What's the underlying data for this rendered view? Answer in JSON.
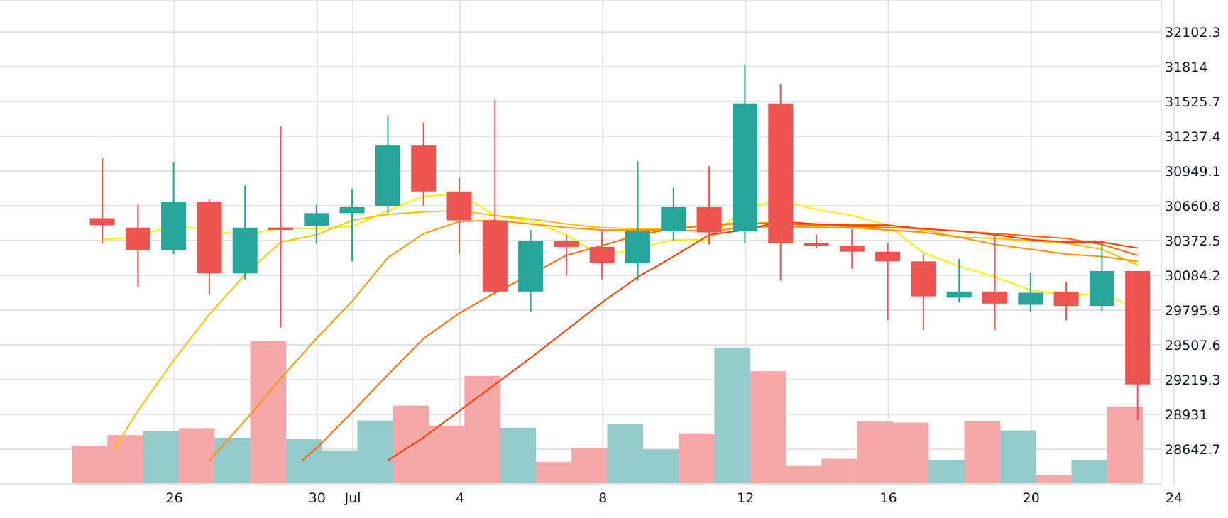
{
  "chart_data": {
    "type": "candlestick",
    "y_ticks": [
      28642.7,
      28931,
      29219.3,
      29507.6,
      29795.9,
      30084.2,
      30372.5,
      30660.8,
      30949.1,
      31237.4,
      31525.7,
      31814,
      32102.3
    ],
    "y_tick_labels": [
      "28642.7",
      "28931",
      "29219.3",
      "29507.6",
      "29795.9",
      "30084.2",
      "30372.5",
      "30660.8",
      "30949.1",
      "31237.4",
      "31525.7",
      "31814",
      "32102.3"
    ],
    "x_ticks": [
      {
        "day": 2,
        "label": "26"
      },
      {
        "day": 6,
        "label": "30"
      },
      {
        "day": 7,
        "label": "Jul"
      },
      {
        "day": 10,
        "label": "4"
      },
      {
        "day": 14,
        "label": "8"
      },
      {
        "day": 18,
        "label": "12"
      },
      {
        "day": 22,
        "label": "16"
      },
      {
        "day": 26,
        "label": "20"
      },
      {
        "day": 30,
        "label": "24"
      }
    ],
    "colors": {
      "up": "#26a69a",
      "down": "#ef5350",
      "volume_up": "#92cbc9",
      "volume_down": "#f5a8a7",
      "grid": "#e4e4e4",
      "ma": [
        "#ffee00",
        "#ffc000",
        "#ff9500",
        "#ff6a00",
        "#ff3b00"
      ]
    },
    "candles": [
      {
        "day": 0,
        "open": 30558,
        "high": 31060,
        "low": 30350,
        "close": 30500,
        "volume": 19.7
      },
      {
        "day": 1,
        "open": 30480,
        "high": 30670,
        "low": 29990,
        "close": 30290,
        "volume": 25.3
      },
      {
        "day": 2,
        "open": 30290,
        "high": 31020,
        "low": 30260,
        "close": 30690,
        "volume": 27.3
      },
      {
        "day": 3,
        "open": 30690,
        "high": 30720,
        "low": 29920,
        "close": 30100,
        "volume": 29.0
      },
      {
        "day": 4,
        "open": 30100,
        "high": 30830,
        "low": 30050,
        "close": 30480,
        "volume": 23.9
      },
      {
        "day": 5,
        "open": 30480,
        "high": 31320,
        "low": 29650,
        "close": 30460,
        "volume": 74.8
      },
      {
        "day": 6,
        "open": 30490,
        "high": 30670,
        "low": 30350,
        "close": 30600,
        "volume": 23.1
      },
      {
        "day": 7,
        "open": 30600,
        "high": 30800,
        "low": 30200,
        "close": 30650,
        "volume": 17.3
      },
      {
        "day": 8,
        "open": 30660,
        "high": 31410,
        "low": 30600,
        "close": 31160,
        "volume": 33.0
      },
      {
        "day": 9,
        "open": 31160,
        "high": 31350,
        "low": 30660,
        "close": 30780,
        "volume": 40.8
      },
      {
        "day": 10,
        "open": 30780,
        "high": 30890,
        "low": 30260,
        "close": 30540,
        "volume": 30.3
      },
      {
        "day": 11,
        "open": 30540,
        "high": 31540,
        "low": 29920,
        "close": 29950,
        "volume": 56.4
      },
      {
        "day": 12,
        "open": 29950,
        "high": 30460,
        "low": 29780,
        "close": 30370,
        "volume": 29.2
      },
      {
        "day": 13,
        "open": 30370,
        "high": 30420,
        "low": 30080,
        "close": 30320,
        "volume": 11.2
      },
      {
        "day": 14,
        "open": 30320,
        "high": 30450,
        "low": 30050,
        "close": 30190,
        "volume": 18.6
      },
      {
        "day": 15,
        "open": 30190,
        "high": 31030,
        "low": 30040,
        "close": 30450,
        "volume": 31.2
      },
      {
        "day": 16,
        "open": 30450,
        "high": 30810,
        "low": 30370,
        "close": 30650,
        "volume": 17.8
      },
      {
        "day": 17,
        "open": 30650,
        "high": 30990,
        "low": 30340,
        "close": 30440,
        "volume": 26.2
      },
      {
        "day": 18,
        "open": 30450,
        "high": 31830,
        "low": 30350,
        "close": 31510,
        "volume": 71.4
      },
      {
        "day": 19,
        "open": 31510,
        "high": 31670,
        "low": 30040,
        "close": 30350,
        "volume": 58.9
      },
      {
        "day": 20,
        "open": 30350,
        "high": 30420,
        "low": 30310,
        "close": 30330,
        "volume": 9.1
      },
      {
        "day": 21,
        "open": 30330,
        "high": 30470,
        "low": 30140,
        "close": 30280,
        "volume": 12.9
      },
      {
        "day": 22,
        "open": 30280,
        "high": 30350,
        "low": 29710,
        "close": 30200,
        "volume": 32.4
      },
      {
        "day": 23,
        "open": 30200,
        "high": 30260,
        "low": 29630,
        "close": 29910,
        "volume": 31.9
      },
      {
        "day": 24,
        "open": 29900,
        "high": 30220,
        "low": 29860,
        "close": 29950,
        "volume": 12.3
      },
      {
        "day": 25,
        "open": 29950,
        "high": 30430,
        "low": 29630,
        "close": 29850,
        "volume": 32.6
      },
      {
        "day": 26,
        "open": 29840,
        "high": 30100,
        "low": 29780,
        "close": 29940,
        "volume": 27.8
      },
      {
        "day": 27,
        "open": 29950,
        "high": 30030,
        "low": 29710,
        "close": 29830,
        "volume": 4.5
      },
      {
        "day": 28,
        "open": 29830,
        "high": 30350,
        "low": 29790,
        "close": 30120,
        "volume": 12.3
      },
      {
        "day": 29,
        "open": 30120,
        "high": 30120,
        "low": 28880,
        "close": 29180,
        "volume": 40.4
      }
    ],
    "moving_averages": [
      {
        "color": "#ffee00",
        "points": [
          [
            0,
            30380
          ],
          [
            1,
            30400
          ],
          [
            2,
            30510
          ],
          [
            3,
            30450
          ],
          [
            4,
            30420
          ],
          [
            5,
            30480
          ],
          [
            6,
            30470
          ],
          [
            7,
            30490
          ],
          [
            8,
            30620
          ],
          [
            9,
            30740
          ],
          [
            10,
            30760
          ],
          [
            11,
            30580
          ],
          [
            12,
            30530
          ],
          [
            13,
            30420
          ],
          [
            14,
            30240
          ],
          [
            15,
            30310
          ],
          [
            16,
            30380
          ],
          [
            17,
            30380
          ],
          [
            18,
            30650
          ],
          [
            19,
            30700
          ],
          [
            20,
            30630
          ],
          [
            21,
            30580
          ],
          [
            22,
            30500
          ],
          [
            23,
            30270
          ],
          [
            24,
            30160
          ],
          [
            25,
            30070
          ],
          [
            26,
            29960
          ],
          [
            27,
            29920
          ],
          [
            28,
            29930
          ],
          [
            29,
            29810
          ]
        ]
      },
      {
        "color": "#ffc000",
        "points": [
          [
            0.3,
            28630
          ],
          [
            1,
            28960
          ],
          [
            2,
            29380
          ],
          [
            3,
            29760
          ],
          [
            4,
            30090
          ],
          [
            5,
            30360
          ],
          [
            6,
            30420
          ],
          [
            7,
            30540
          ],
          [
            8,
            30590
          ],
          [
            9,
            30610
          ],
          [
            10,
            30620
          ],
          [
            11,
            30580
          ],
          [
            12,
            30550
          ],
          [
            13,
            30510
          ],
          [
            14,
            30480
          ],
          [
            15,
            30470
          ],
          [
            16,
            30470
          ],
          [
            17,
            30500
          ],
          [
            18,
            30510
          ],
          [
            19,
            30530
          ],
          [
            20,
            30490
          ],
          [
            21,
            30500
          ],
          [
            22,
            30500
          ],
          [
            23,
            30460
          ],
          [
            24,
            30400
          ],
          [
            25,
            30390
          ],
          [
            26,
            30370
          ],
          [
            27,
            30350
          ],
          [
            28,
            30300
          ],
          [
            29,
            30170
          ]
        ]
      },
      {
        "color": "#ff9500",
        "points": [
          [
            3,
            28550
          ],
          [
            4,
            28880
          ],
          [
            5,
            29230
          ],
          [
            6,
            29560
          ],
          [
            7,
            29870
          ],
          [
            8,
            30230
          ],
          [
            9,
            30430
          ],
          [
            10,
            30530
          ],
          [
            11,
            30540
          ],
          [
            12,
            30510
          ],
          [
            13,
            30480
          ],
          [
            14,
            30460
          ],
          [
            15,
            30460
          ],
          [
            16,
            30460
          ],
          [
            17,
            30450
          ],
          [
            18,
            30480
          ],
          [
            19,
            30490
          ],
          [
            20,
            30480
          ],
          [
            21,
            30480
          ],
          [
            22,
            30460
          ],
          [
            23,
            30440
          ],
          [
            24,
            30400
          ],
          [
            25,
            30340
          ],
          [
            26,
            30300
          ],
          [
            27,
            30260
          ],
          [
            28,
            30240
          ],
          [
            29,
            30200
          ]
        ]
      },
      {
        "color": "#ff6a00",
        "points": [
          [
            5.6,
            28550
          ],
          [
            6,
            28650
          ],
          [
            7,
            28950
          ],
          [
            8,
            29260
          ],
          [
            9,
            29560
          ],
          [
            10,
            29770
          ],
          [
            11,
            29940
          ],
          [
            12,
            30090
          ],
          [
            13,
            30250
          ],
          [
            14,
            30330
          ],
          [
            15,
            30420
          ],
          [
            16,
            30470
          ],
          [
            17,
            30500
          ],
          [
            18,
            30520
          ],
          [
            19,
            30510
          ],
          [
            20,
            30500
          ],
          [
            21,
            30490
          ],
          [
            22,
            30480
          ],
          [
            23,
            30470
          ],
          [
            24,
            30450
          ],
          [
            25,
            30430
          ],
          [
            26,
            30410
          ],
          [
            27,
            30390
          ],
          [
            28,
            30340
          ],
          [
            29,
            30250
          ]
        ]
      },
      {
        "color": "#ff3b00",
        "points": [
          [
            8,
            28550
          ],
          [
            9,
            28740
          ],
          [
            10,
            28960
          ],
          [
            11,
            29180
          ],
          [
            12,
            29400
          ],
          [
            13,
            29630
          ],
          [
            14,
            29860
          ],
          [
            15,
            30070
          ],
          [
            16,
            30240
          ],
          [
            17,
            30420
          ],
          [
            18,
            30460
          ],
          [
            19,
            30530
          ],
          [
            20,
            30510
          ],
          [
            21,
            30500
          ],
          [
            22,
            30500
          ],
          [
            23,
            30470
          ],
          [
            24,
            30450
          ],
          [
            25,
            30420
          ],
          [
            26,
            30380
          ],
          [
            27,
            30360
          ],
          [
            28,
            30360
          ],
          [
            29,
            30310
          ]
        ]
      }
    ]
  }
}
